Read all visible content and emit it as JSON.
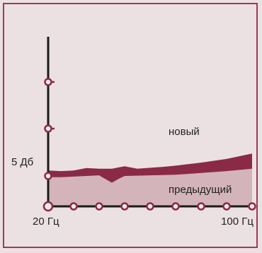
{
  "chart_data": {
    "type": "area",
    "x_range_hz": [
      20,
      100
    ],
    "y_labels": [
      {
        "value_db": 5,
        "text": "5 Дб"
      }
    ],
    "x_labels": [
      {
        "value_hz": 20,
        "text": "20 Гц"
      },
      {
        "value_hz": 100,
        "text": "100 Гц"
      }
    ],
    "x_tick_count": 9,
    "y_tick_count": 4,
    "series": [
      {
        "name": "новый",
        "color": "#8a2a47",
        "x": [
          20,
          25,
          30,
          35,
          40,
          45,
          50,
          55,
          60,
          65,
          70,
          80,
          90,
          100
        ],
        "y": [
          5.9,
          5.8,
          5.9,
          6.3,
          6.2,
          6.2,
          6.6,
          6.2,
          6.35,
          6.5,
          6.7,
          7.2,
          7.8,
          8.7
        ]
      },
      {
        "name": "предыдущий",
        "color": "#d3b4bb",
        "x": [
          20,
          25,
          30,
          35,
          40,
          42,
          45,
          48,
          50,
          60,
          70,
          80,
          90,
          100
        ],
        "y": [
          4.8,
          4.8,
          4.9,
          5.0,
          5.1,
          4.6,
          3.9,
          4.6,
          5.0,
          5.1,
          5.2,
          5.5,
          5.8,
          6.2
        ]
      }
    ]
  },
  "colors": {
    "frame": "#9b3b56",
    "background": "#ebe1e3",
    "axis": "#1a1a1a",
    "marker": "#8a2a47"
  }
}
